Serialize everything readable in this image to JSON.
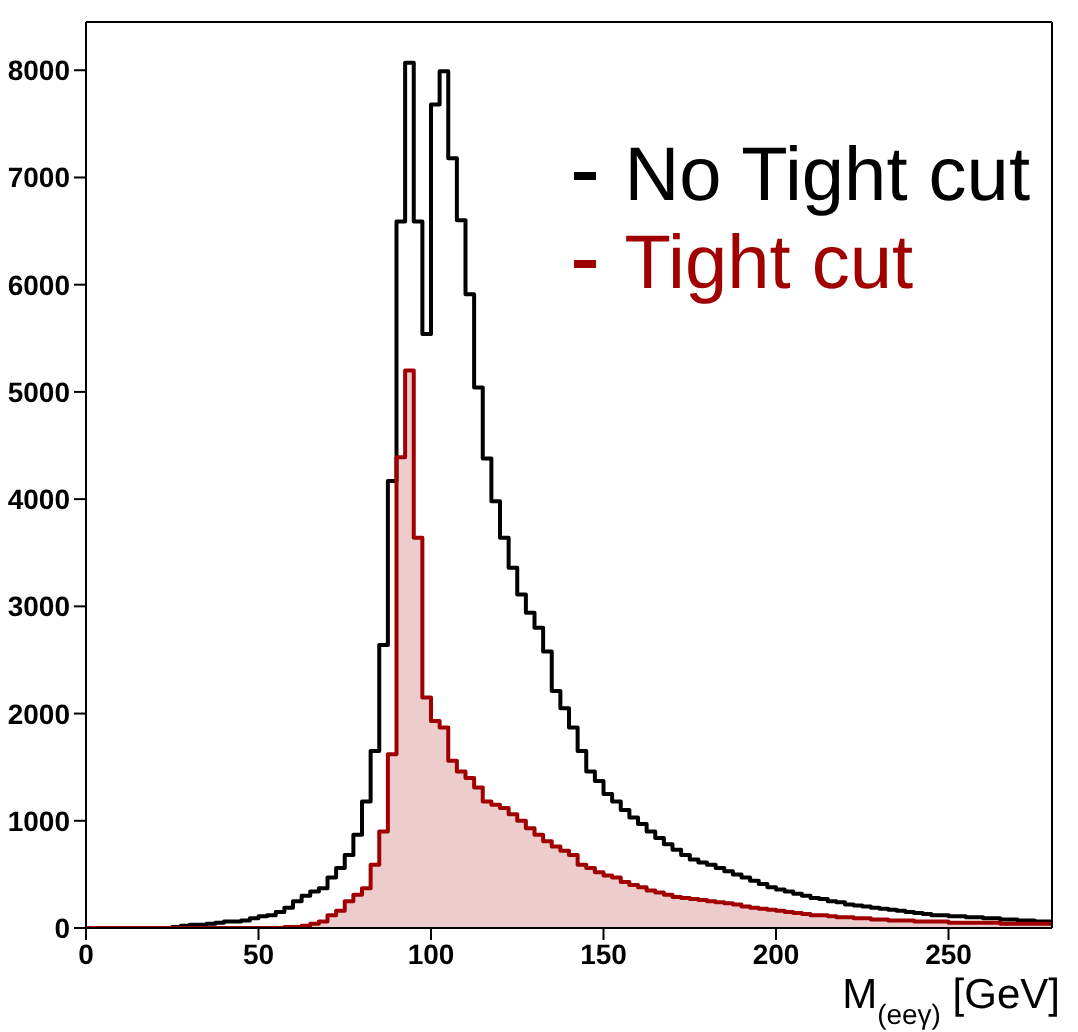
{
  "chart_data": {
    "type": "histogram",
    "xlabel": "M$_{(eeγ)}$ [GeV]",
    "bins": [
      0,
      2.5,
      5,
      7.5,
      10,
      12.5,
      15,
      17.5,
      20,
      22.5,
      25,
      27.5,
      30,
      32.5,
      35,
      37.5,
      40,
      42.5,
      45,
      47.5,
      50,
      52.5,
      55,
      57.5,
      60,
      62.5,
      65,
      67.5,
      70,
      72.5,
      75,
      77.5,
      80,
      82.5,
      85,
      87.5,
      90,
      92.5,
      95,
      97.5,
      100,
      102.5,
      105,
      107.5,
      110,
      112.5,
      115,
      117.5,
      120,
      122.5,
      125,
      127.5,
      130,
      132.5,
      135,
      137.5,
      140,
      142.5,
      145,
      147.5,
      150,
      152.5,
      155,
      157.5,
      160,
      162.5,
      165,
      167.5,
      170,
      172.5,
      175,
      177.5,
      180,
      182.5,
      185,
      187.5,
      190,
      192.5,
      195,
      197.5,
      200,
      202.5,
      205,
      207.5,
      210,
      212.5,
      215,
      217.5,
      220,
      222.5,
      225,
      227.5,
      230,
      232.5,
      235,
      237.5,
      240,
      242.5,
      245,
      247.5,
      250,
      252.5,
      255,
      257.5,
      260,
      262.5,
      265,
      267.5,
      270,
      272.5,
      275,
      277.5,
      280
    ],
    "series": [
      {
        "name": "No Tight cut",
        "color": "#000000",
        "values": [
          0,
          0,
          0,
          0,
          0,
          0,
          0,
          0,
          0,
          0,
          10,
          20,
          30,
          30,
          40,
          50,
          60,
          60,
          70,
          90,
          110,
          120,
          150,
          190,
          250,
          300,
          340,
          370,
          470,
          560,
          680,
          870,
          1180,
          1650,
          2640,
          4170,
          6590,
          8070,
          6590,
          5540,
          7680,
          7990,
          7180,
          6600,
          5910,
          5040,
          4380,
          3980,
          3640,
          3360,
          3110,
          2940,
          2800,
          2580,
          2210,
          2050,
          1870,
          1650,
          1460,
          1370,
          1250,
          1180,
          1100,
          1030,
          970,
          900,
          840,
          780,
          730,
          680,
          640,
          610,
          590,
          560,
          530,
          500,
          470,
          440,
          410,
          380,
          360,
          340,
          320,
          300,
          280,
          270,
          250,
          240,
          220,
          210,
          200,
          190,
          180,
          170,
          160,
          150,
          140,
          130,
          120,
          120,
          110,
          110,
          100,
          100,
          90,
          90,
          80,
          80,
          70,
          70,
          60,
          60
        ]
      },
      {
        "name": "Tight cut",
        "color": "#a00000",
        "values": [
          0,
          0,
          0,
          0,
          0,
          0,
          0,
          0,
          0,
          0,
          0,
          0,
          0,
          0,
          0,
          0,
          0,
          0,
          0,
          0,
          0,
          0,
          0,
          10,
          10,
          20,
          40,
          60,
          120,
          160,
          250,
          310,
          370,
          590,
          900,
          1620,
          4390,
          5200,
          3640,
          2150,
          1930,
          1870,
          1560,
          1460,
          1400,
          1310,
          1180,
          1150,
          1120,
          1060,
          1000,
          930,
          870,
          810,
          760,
          720,
          680,
          590,
          560,
          520,
          490,
          470,
          430,
          400,
          380,
          350,
          330,
          310,
          290,
          280,
          270,
          260,
          250,
          240,
          230,
          220,
          200,
          190,
          180,
          170,
          160,
          150,
          140,
          130,
          120,
          120,
          110,
          100,
          100,
          90,
          90,
          80,
          80,
          70,
          70,
          70,
          60,
          60,
          60,
          60,
          50,
          50,
          50,
          50,
          50,
          50,
          40,
          40,
          40,
          40,
          40,
          40
        ]
      }
    ],
    "xlim": [
      0,
      280
    ],
    "xticks": [
      0,
      50,
      100,
      150,
      200,
      250
    ],
    "ylim": [
      0,
      8450
    ],
    "yticks": [
      0,
      1000,
      2000,
      3000,
      4000,
      5000,
      6000,
      7000,
      8000
    ],
    "legend": "top right"
  }
}
